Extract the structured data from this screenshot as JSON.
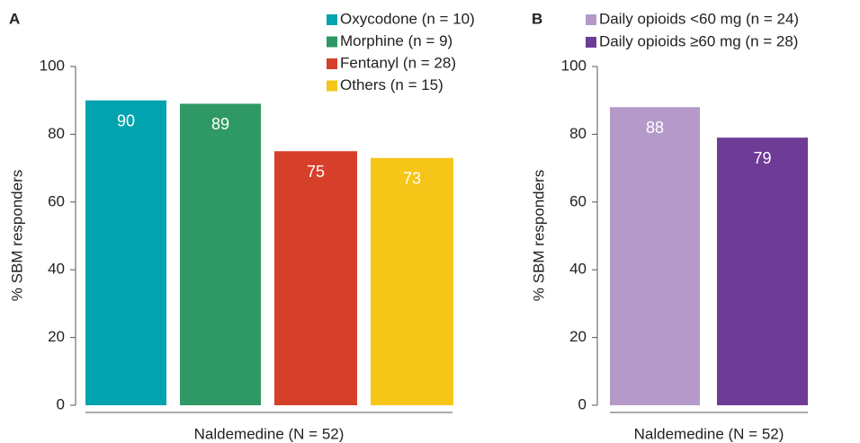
{
  "chart_data": [
    {
      "type": "bar",
      "panel_label": "A",
      "ylabel": "% SBM responders",
      "xlabel": "Naldemedine (N = 52)",
      "ylim": [
        0,
        100
      ],
      "yticks": [
        0,
        20,
        40,
        60,
        80,
        100
      ],
      "series": [
        {
          "name": "Oxycodone (n = 10)",
          "color": "#00a3ae",
          "values": [
            90
          ]
        },
        {
          "name": "Morphine (n = 9)",
          "color": "#2e9964",
          "values": [
            89
          ]
        },
        {
          "name": "Fentanyl (n = 28)",
          "color": "#d6402b",
          "values": [
            75
          ]
        },
        {
          "name": "Others (n = 15)",
          "color": "#f5c518",
          "values": [
            73
          ]
        }
      ]
    },
    {
      "type": "bar",
      "panel_label": "B",
      "ylabel": "% SBM responders",
      "xlabel": "Naldemedine (N = 52)",
      "ylim": [
        0,
        100
      ],
      "yticks": [
        0,
        20,
        40,
        60,
        80,
        100
      ],
      "series": [
        {
          "name": "Daily opioids <60 mg (n = 24)",
          "color": "#b59ac9",
          "values": [
            88
          ]
        },
        {
          "name": "Daily opioids ≥60 mg (n = 28)",
          "color": "#6e3b96",
          "values": [
            79
          ]
        }
      ]
    }
  ]
}
